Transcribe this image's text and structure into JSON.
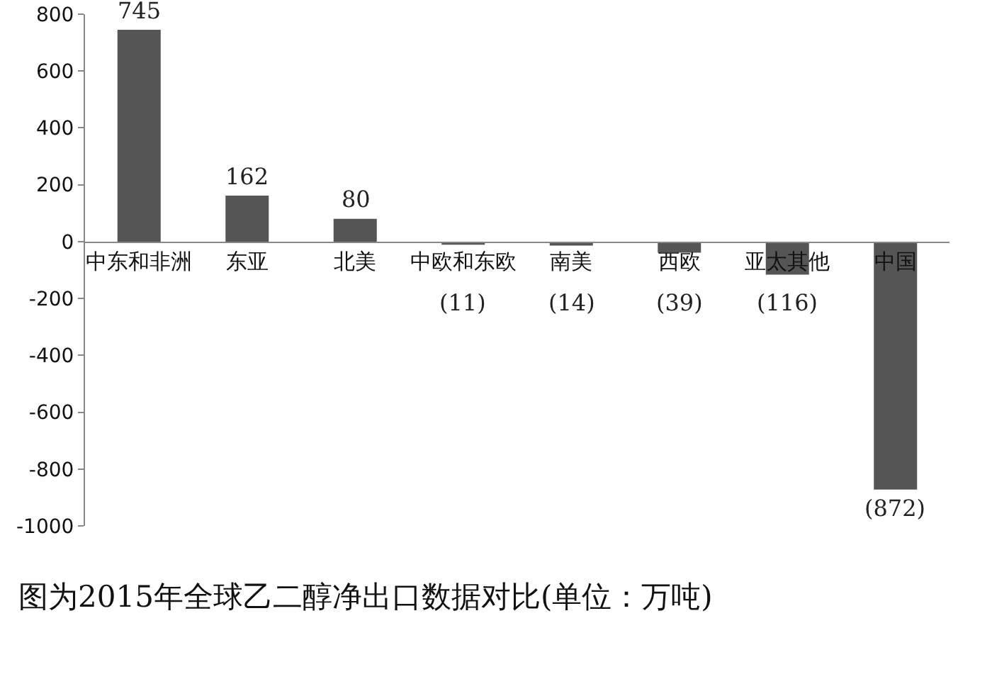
{
  "chart_data": {
    "type": "bar",
    "categories": [
      "中东和非洲",
      "东亚",
      "北美",
      "中欧和东欧",
      "南美",
      "西欧",
      "亚太其他",
      "中国"
    ],
    "values": [
      745,
      162,
      80,
      -11,
      -14,
      -39,
      -116,
      -872
    ],
    "value_labels": [
      "745",
      "162",
      "80",
      "(11)",
      "(14)",
      "(39)",
      "(116)",
      "(872)"
    ],
    "color": "#555555",
    "ylim": [
      -1000,
      800
    ],
    "yticks": [
      -1000,
      -800,
      -600,
      -400,
      -200,
      0,
      200,
      400,
      600,
      800
    ],
    "grid": false,
    "annotations": [
      "图为2015年全球乙二醇净出口数据对比(单位：万吨)"
    ]
  }
}
